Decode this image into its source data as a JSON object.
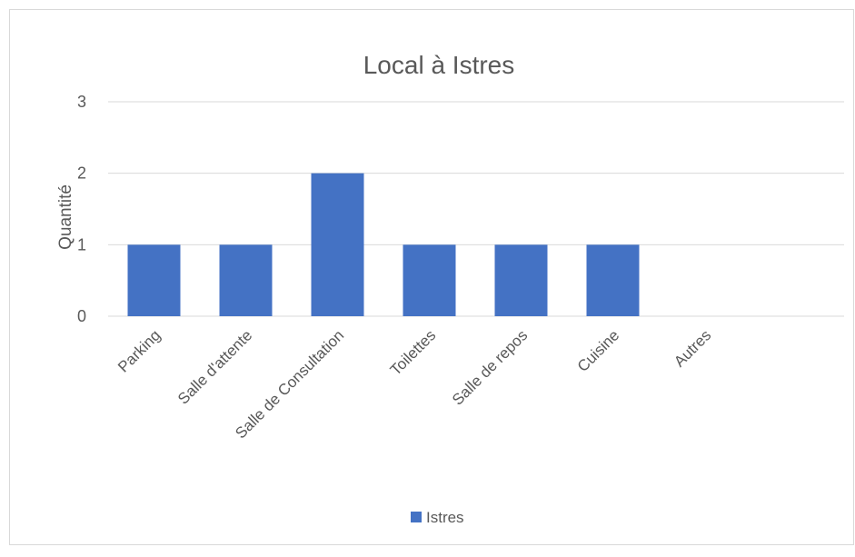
{
  "chart_data": {
    "type": "bar",
    "title": "Local à Istres",
    "ylabel": "Quantité",
    "xlabel": "",
    "categories": [
      "Parking",
      "Salle d'attente",
      "Salle de Consultation",
      "Toilettes",
      "Salle de repos",
      "Cuisine",
      "Autres"
    ],
    "series": [
      {
        "name": "Istres",
        "values": [
          1,
          1,
          2,
          1,
          1,
          1,
          0
        ],
        "color": "#4472C4"
      }
    ],
    "ylim": [
      0,
      3
    ],
    "yticks": [
      0,
      1,
      2,
      3
    ],
    "grid": true,
    "legend": "bottom"
  }
}
